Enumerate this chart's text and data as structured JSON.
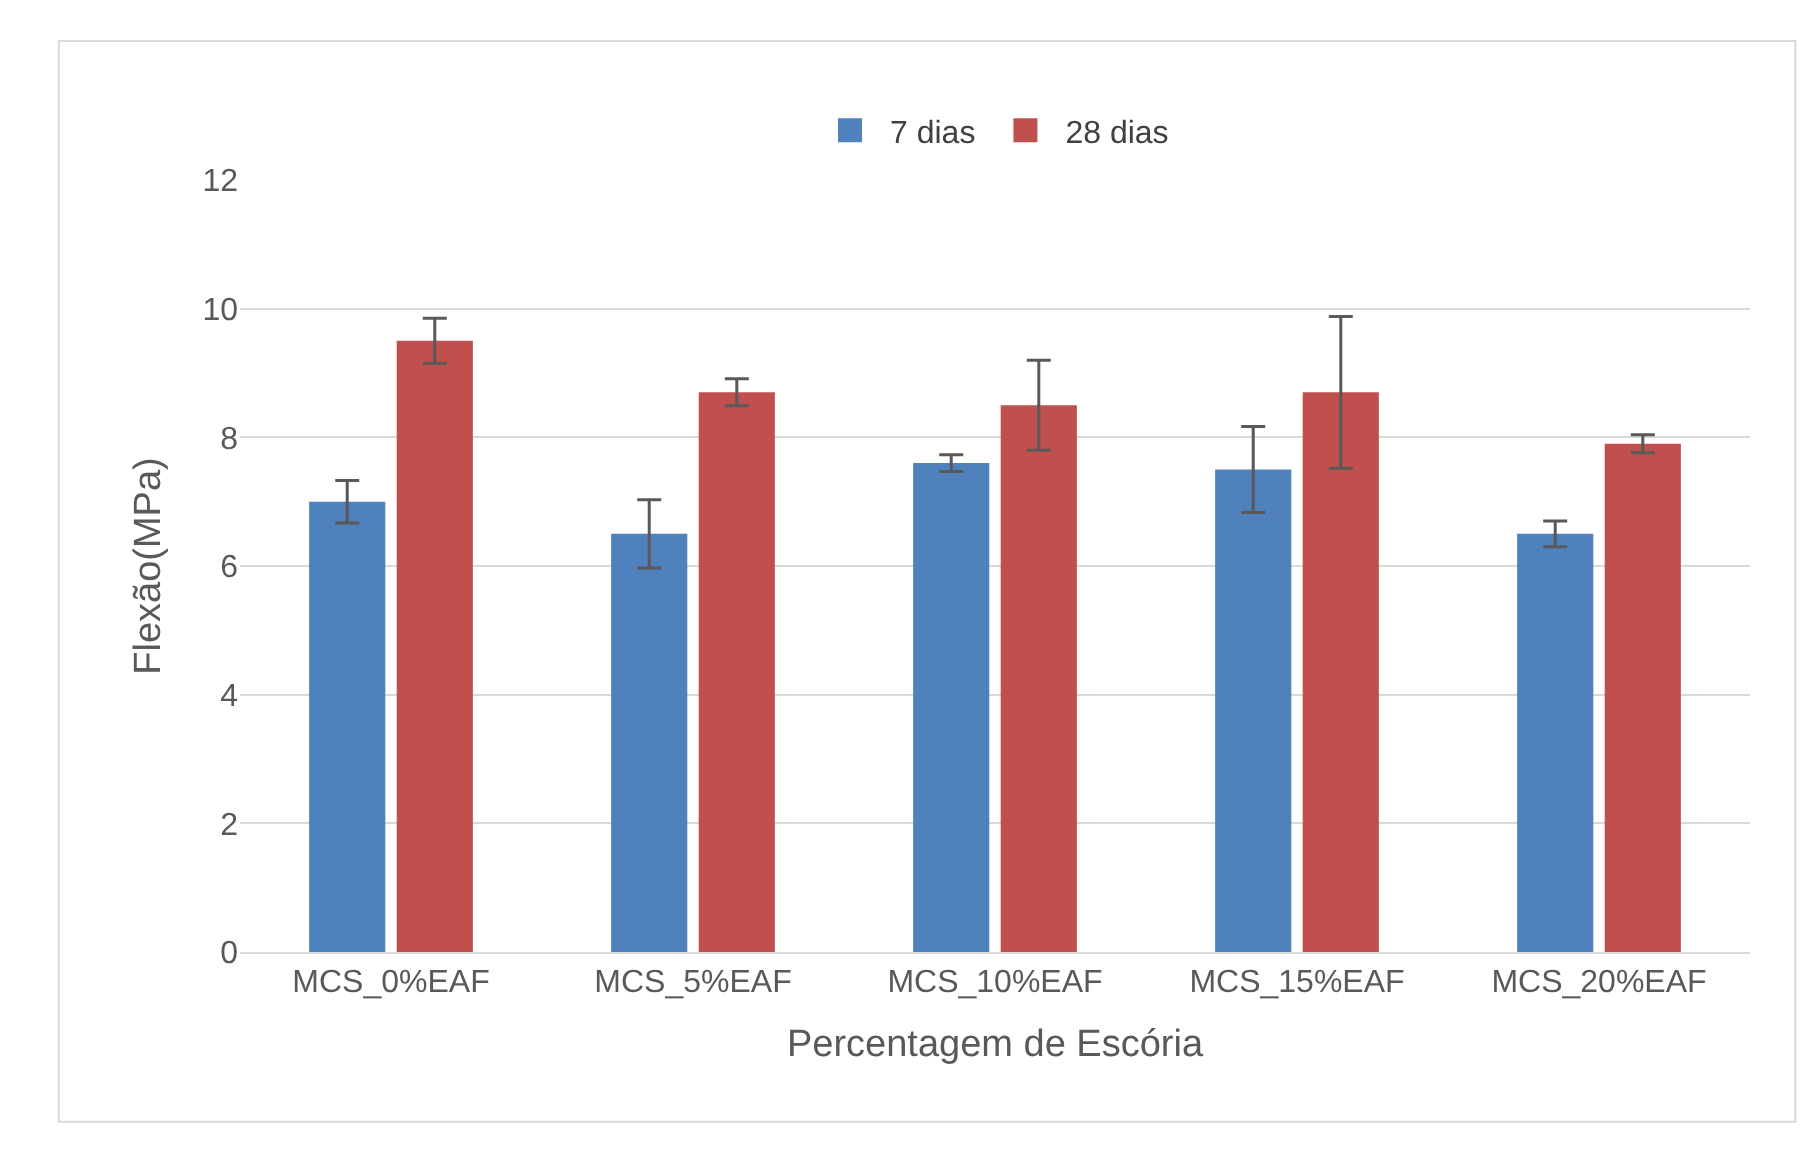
{
  "chart_data": {
    "type": "bar",
    "xlabel": "Percentagem de Escória",
    "ylabel": "Flexão(MPa)",
    "categories": [
      "MCS_0%EAF",
      "MCS_5%EAF",
      "MCS_10%EAF",
      "MCS_15%EAF",
      "MCS_20%EAF"
    ],
    "series": [
      {
        "name": "7 dias",
        "color": "#4f81bd",
        "values": [
          7.0,
          6.5,
          7.6,
          7.5,
          6.5
        ],
        "errors": [
          0.33,
          0.53,
          0.13,
          0.67,
          0.2
        ]
      },
      {
        "name": "28 dias",
        "color": "#c0504d",
        "values": [
          9.5,
          8.7,
          8.5,
          8.7,
          7.9
        ],
        "errors": [
          0.35,
          0.21,
          0.7,
          1.18,
          0.14
        ]
      }
    ],
    "ylim": [
      0,
      12
    ],
    "yticks": [
      0,
      2,
      4,
      6,
      8,
      10,
      12
    ],
    "grid": "y",
    "legend": "top"
  }
}
